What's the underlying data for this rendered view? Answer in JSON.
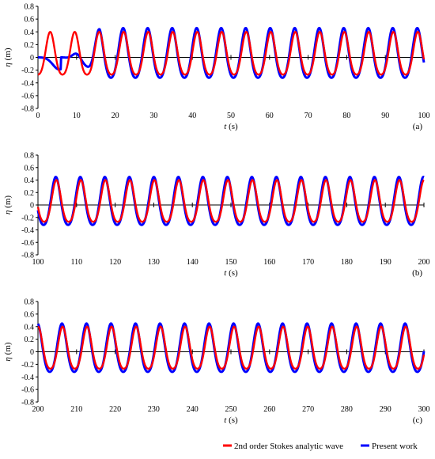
{
  "chart_data": [
    {
      "type": "line",
      "panel_label": "(a)",
      "xlabel_italic": "t",
      "xlabel_unit": "(s)",
      "ylabel_italic": "η",
      "ylabel_unit": "(m)",
      "xlim": [
        0,
        100
      ],
      "ylim": [
        -0.8,
        0.8
      ],
      "xticks": [
        "0",
        "10",
        "20",
        "30",
        "40",
        "50",
        "60",
        "70",
        "80",
        "90",
        "100"
      ],
      "yticks": [
        "-0.8",
        "-0.6",
        "-0.4",
        "-0.2",
        "0",
        "0.2",
        "0.4",
        "0.6",
        "0.8"
      ],
      "grid": false,
      "series": [
        {
          "name": "2nd order Stokes analytic wave",
          "color": "#ff0000",
          "amplitude_crest": 0.35,
          "amplitude_trough": -0.32,
          "period_s": 6.35,
          "value_at_start": -0.32
        },
        {
          "name": "Present work",
          "color": "#0000ff",
          "amplitude_crest": 0.41,
          "amplitude_trough": -0.37,
          "period_s": 6.35,
          "ramp_up_end_s": 16,
          "value_at_start": 0.0
        }
      ]
    },
    {
      "type": "line",
      "panel_label": "(b)",
      "xlabel_italic": "t",
      "xlabel_unit": "(s)",
      "ylabel_italic": "η",
      "ylabel_unit": "(m)",
      "xlim": [
        100,
        200
      ],
      "ylim": [
        -0.8,
        0.8
      ],
      "xticks": [
        "100",
        "110",
        "120",
        "130",
        "140",
        "150",
        "160",
        "170",
        "180",
        "190",
        "200"
      ],
      "yticks": [
        "-0.8",
        "-0.6",
        "-0.4",
        "-0.2",
        "0",
        "0.2",
        "0.4",
        "0.6",
        "0.8"
      ],
      "grid": false,
      "series": [
        {
          "name": "2nd order Stokes analytic wave",
          "color": "#ff0000",
          "amplitude_crest": 0.35,
          "amplitude_trough": -0.32,
          "period_s": 6.35
        },
        {
          "name": "Present work",
          "color": "#0000ff",
          "amplitude_crest": 0.4,
          "amplitude_trough": -0.37,
          "period_s": 6.35
        }
      ]
    },
    {
      "type": "line",
      "panel_label": "(c)",
      "xlabel_italic": "t",
      "xlabel_unit": "(s)",
      "ylabel_italic": "η",
      "ylabel_unit": "(m)",
      "xlim": [
        200,
        300
      ],
      "ylim": [
        -0.8,
        0.8
      ],
      "xticks": [
        "200",
        "210",
        "220",
        "230",
        "240",
        "250",
        "260",
        "270",
        "280",
        "290",
        "300"
      ],
      "yticks": [
        "-0.8",
        "-0.6",
        "-0.4",
        "-0.2",
        "0",
        "0.2",
        "0.4",
        "0.6",
        "0.8"
      ],
      "grid": false,
      "series": [
        {
          "name": "2nd order Stokes analytic wave",
          "color": "#ff0000",
          "amplitude_crest": 0.35,
          "amplitude_trough": -0.32,
          "period_s": 6.35
        },
        {
          "name": "Present work",
          "color": "#0000ff",
          "amplitude_crest": 0.4,
          "amplitude_trough": -0.37,
          "period_s": 6.35
        }
      ]
    }
  ],
  "legend": {
    "placement": "bottom-right",
    "items": [
      {
        "label": "2nd order Stokes analytic wave",
        "color": "#ff0000"
      },
      {
        "label": "Present work",
        "color": "#0000ff"
      }
    ]
  }
}
